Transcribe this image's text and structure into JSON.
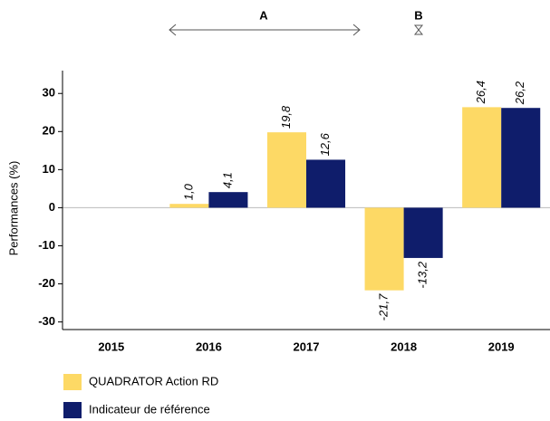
{
  "chart_data": {
    "type": "bar",
    "y_label": "Performances (%)",
    "annotations": [
      "A",
      "B"
    ],
    "categories": [
      "2015",
      "2016",
      "2017",
      "2018",
      "2019"
    ],
    "series": [
      {
        "name": "QUADRATOR Action RD",
        "color": "#fdd965",
        "values": [
          null,
          1.0,
          19.8,
          -21.7,
          26.4
        ],
        "value_labels": [
          null,
          "1,0",
          "19,8",
          "-21,7",
          "26,4"
        ]
      },
      {
        "name": "Indicateur de référence",
        "color": "#0f1d6b",
        "values": [
          null,
          4.1,
          12.6,
          -13.2,
          26.2
        ],
        "value_labels": [
          null,
          "4,1",
          "12,6",
          "-13,2",
          "26,2"
        ]
      }
    ],
    "ylim": [
      -32,
      36
    ],
    "yticks": [
      -30,
      -20,
      -10,
      0,
      10,
      20,
      30
    ]
  }
}
